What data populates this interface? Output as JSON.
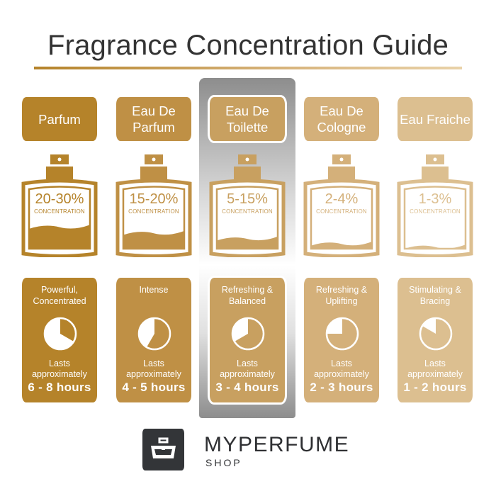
{
  "title": "Fragrance Concentration Guide",
  "columns": [
    {
      "name": "Parfum",
      "concentration": "20-30%",
      "concentration_label": "CONCENTRATION",
      "description": "Powerful, Concentrated",
      "lasts_label": "Lasts approximately",
      "duration": "6 - 8 hours",
      "max_hours": 8,
      "fill_level": 0.45,
      "color": "#b5832a",
      "highlighted": false
    },
    {
      "name": "Eau De Parfum",
      "concentration": "15-20%",
      "concentration_label": "CONCENTRATION",
      "description": "Intense",
      "lasts_label": "Lasts approximately",
      "duration": "4 - 5 hours",
      "max_hours": 5,
      "fill_level": 0.33,
      "color": "#bf9045",
      "highlighted": false
    },
    {
      "name": "Eau De Toilette",
      "concentration": "5-15%",
      "concentration_label": "CONCENTRATION",
      "description": "Refreshing & Balanced",
      "lasts_label": "Lasts approximately",
      "duration": "3 - 4 hours",
      "max_hours": 4,
      "fill_level": 0.22,
      "color": "#c8a060",
      "highlighted": true
    },
    {
      "name": "Eau De Cologne",
      "concentration": "2-4%",
      "concentration_label": "CONCENTRATION",
      "description": "Refreshing & Uplifting",
      "lasts_label": "Lasts approximately",
      "duration": "2 - 3 hours",
      "max_hours": 3,
      "fill_level": 0.12,
      "color": "#d4b07a",
      "highlighted": false
    },
    {
      "name": "Eau Fraiche",
      "concentration": "1-3%",
      "concentration_label": "CONCENTRATION",
      "description": "Stimulating & Bracing",
      "lasts_label": "Lasts approximately",
      "duration": "1 - 2 hours",
      "max_hours": 2,
      "fill_level": 0.06,
      "color": "#dcbf90",
      "highlighted": false
    }
  ],
  "logo": {
    "brand": "MYPERFUME",
    "sub": "SHOP",
    "icon": "perfume-bottle-logo-icon"
  }
}
